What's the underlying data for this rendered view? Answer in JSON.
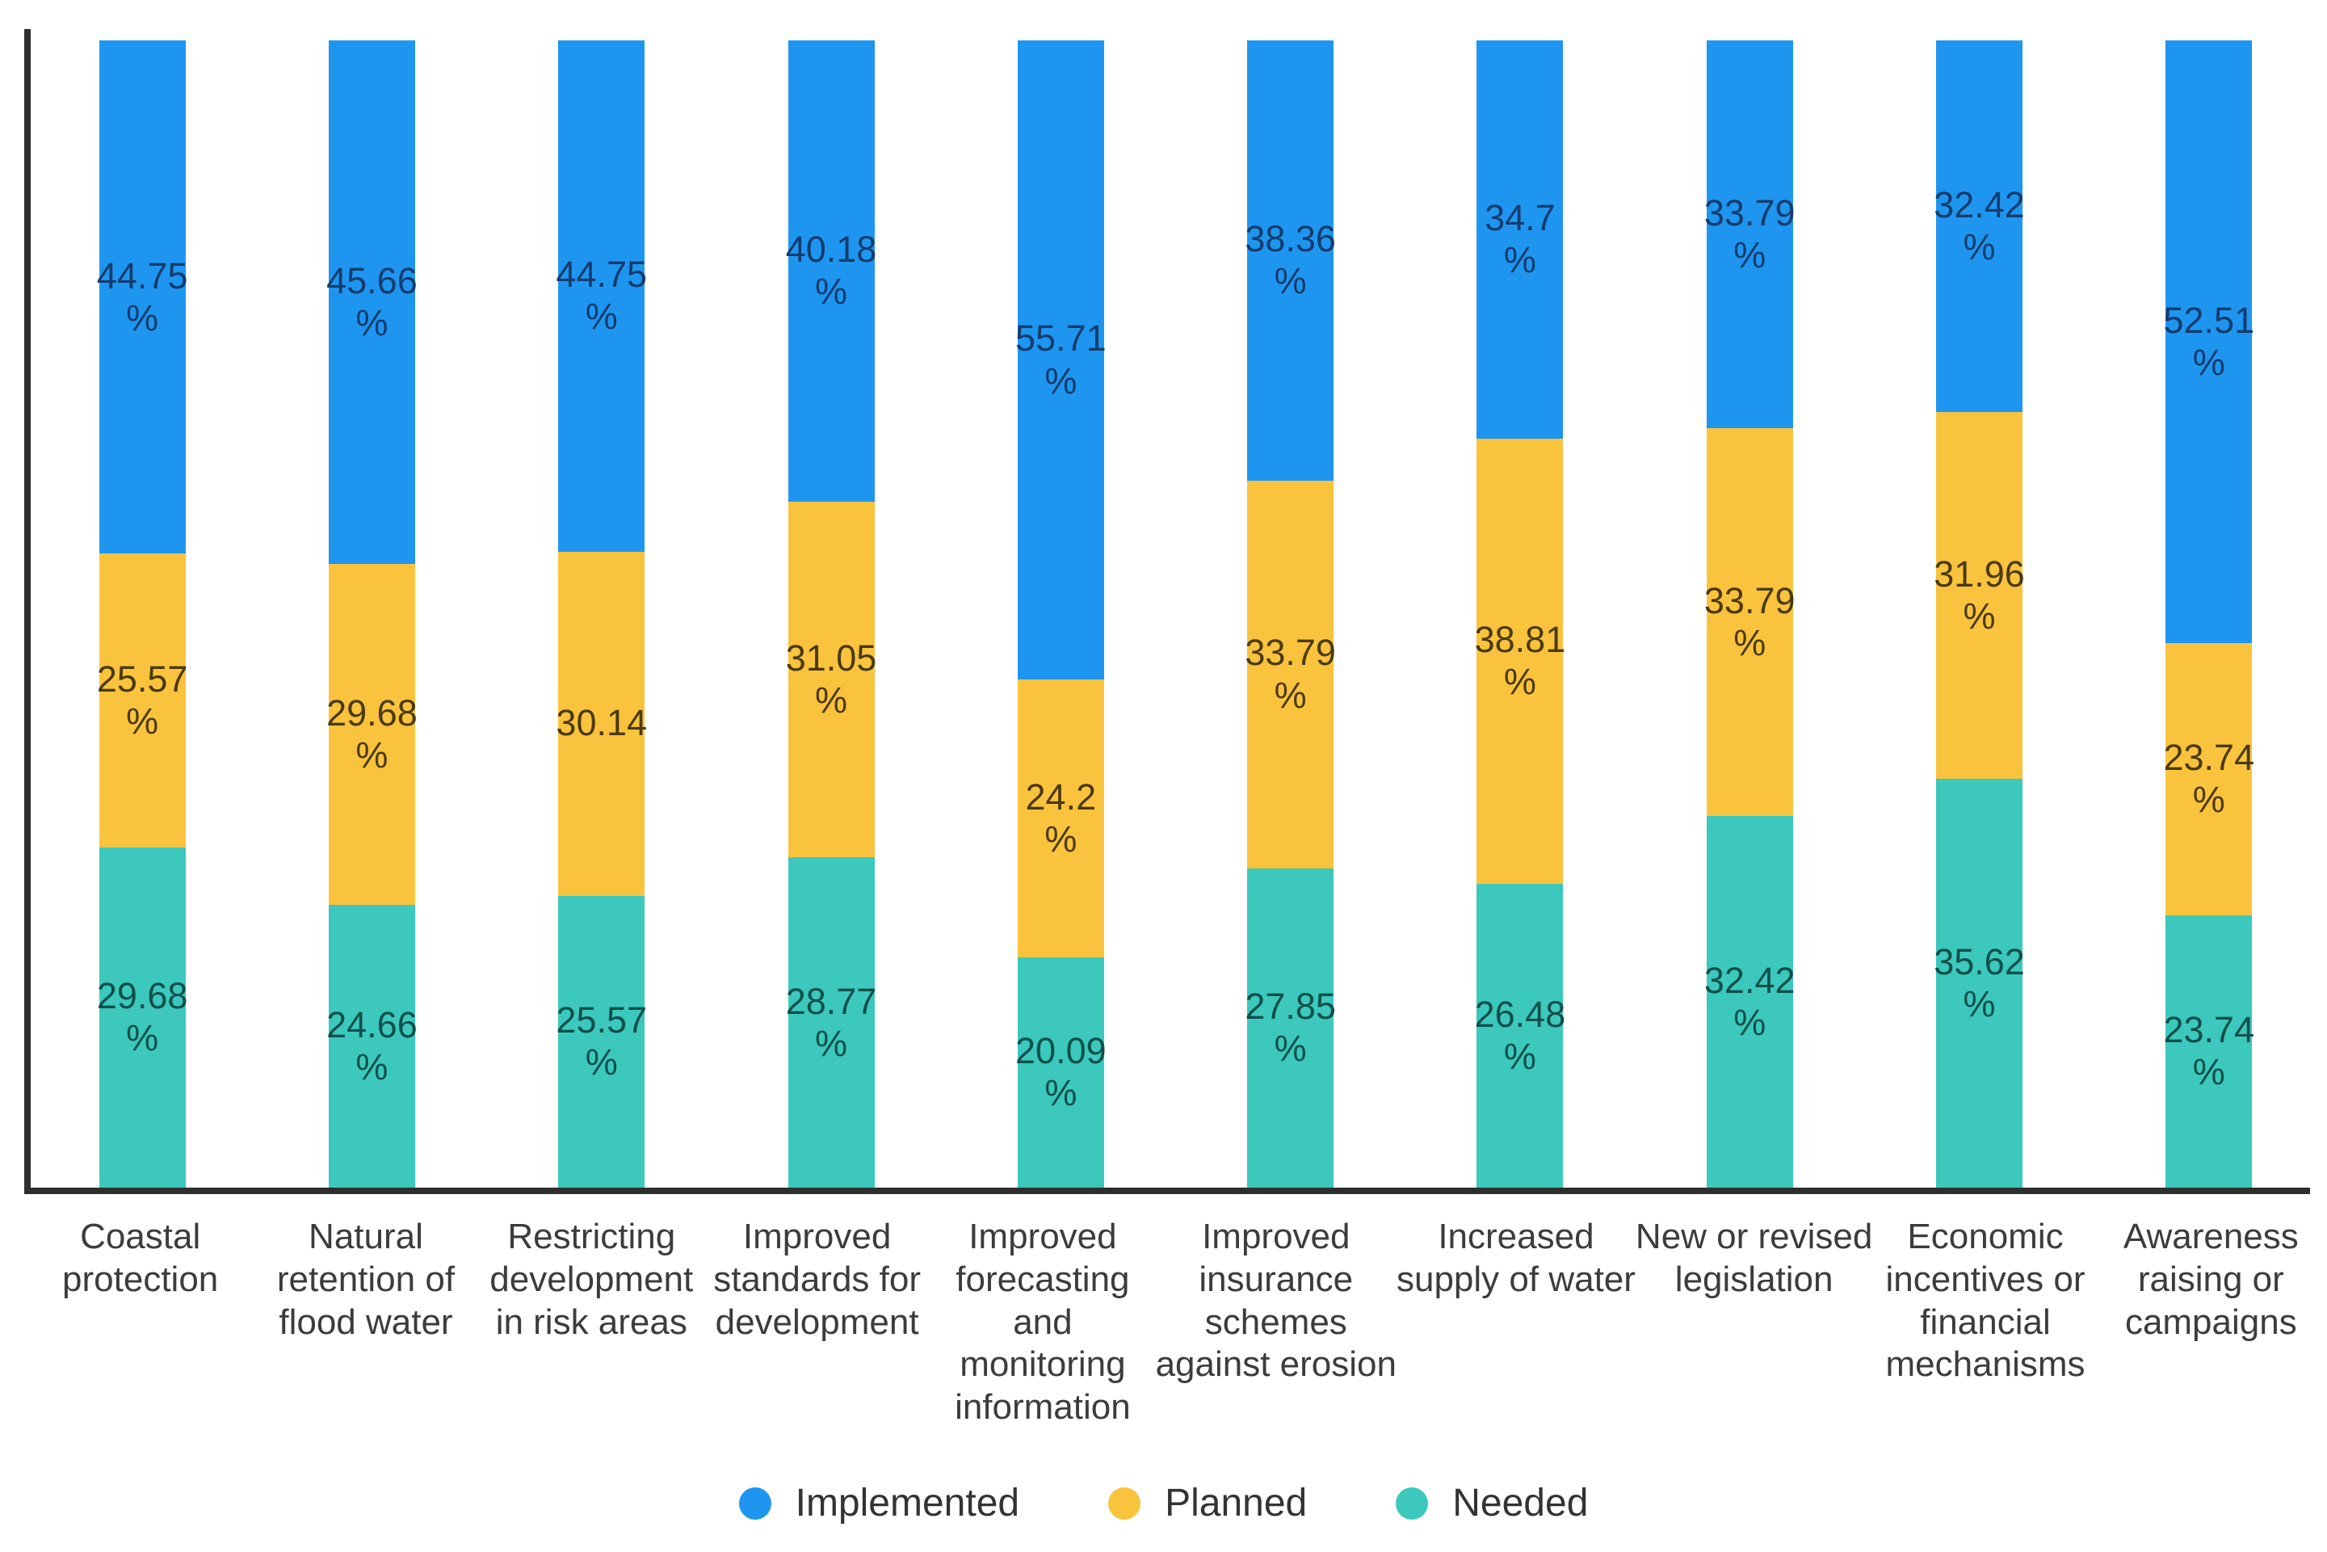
{
  "chart_data": {
    "type": "bar",
    "subtype": "stacked-percent-column",
    "title": "",
    "xlabel": "",
    "ylabel": "",
    "unit": "%",
    "ylim": [
      0,
      100
    ],
    "grid": false,
    "legend_position": "bottom",
    "colors": {
      "implemented": "#1E96F0",
      "planned": "#FAC33E",
      "needed": "#3CC8BC",
      "axis": "#2E2E2E",
      "category_text": "#3C3C3C",
      "legend_text": "#333333"
    },
    "categories": [
      {
        "id": "coastal-protection",
        "lines": [
          "Coastal",
          "protection"
        ]
      },
      {
        "id": "natural-retention-of-flood-water",
        "lines": [
          "Natural",
          "retention of",
          "flood water"
        ]
      },
      {
        "id": "restricting-development-in-risk-areas",
        "lines": [
          "Restricting",
          "development",
          "in risk areas"
        ]
      },
      {
        "id": "improved-standards-for-development",
        "lines": [
          "Improved",
          "standards for",
          "development"
        ]
      },
      {
        "id": "improved-forecasting-and-monitoring-information",
        "lines": [
          "Improved",
          "forecasting",
          "and",
          "monitoring",
          "information"
        ]
      },
      {
        "id": "improved-insurance-schemes-against-erosion",
        "lines": [
          "Improved",
          "insurance",
          "schemes",
          "against erosion"
        ]
      },
      {
        "id": "increased-supply-of-water",
        "lines": [
          "Increased",
          "supply of water"
        ]
      },
      {
        "id": "new-or-revised-legislation",
        "lines": [
          "New or revised",
          "legislation"
        ]
      },
      {
        "id": "economic-incentives-or-financial-mechanisms",
        "lines": [
          "Economic",
          "incentives or",
          "financial",
          "mechanisms"
        ]
      },
      {
        "id": "awareness-raising-or-campaigns",
        "lines": [
          "Awareness",
          "raising or",
          "campaigns"
        ]
      }
    ],
    "series": [
      {
        "name": "Implemented",
        "color": "#1E96F0",
        "label_color": "#143C6E",
        "values": [
          44.75,
          45.66,
          44.75,
          40.18,
          55.71,
          38.36,
          34.7,
          33.79,
          32.42,
          52.51
        ],
        "display": [
          [
            "44.75",
            "%"
          ],
          [
            "45.66",
            "%"
          ],
          [
            "44.75",
            "%"
          ],
          [
            "40.18",
            "%"
          ],
          [
            "55.71",
            "%"
          ],
          [
            "38.36",
            "%"
          ],
          [
            "34.7",
            "%"
          ],
          [
            "33.79",
            "%"
          ],
          [
            "32.42",
            "%"
          ],
          [
            "52.51",
            "%"
          ]
        ]
      },
      {
        "name": "Planned",
        "color": "#FAC33E",
        "label_color": "#4B3A10",
        "values": [
          25.57,
          29.68,
          30.14,
          31.05,
          24.2,
          33.79,
          38.81,
          33.79,
          31.96,
          23.74
        ],
        "display": [
          [
            "25.57",
            "%"
          ],
          [
            "29.68",
            "%"
          ],
          [
            "30.14"
          ],
          [
            "31.05",
            "%"
          ],
          [
            "24.2",
            "%"
          ],
          [
            "33.79",
            "%"
          ],
          [
            "38.81",
            "%"
          ],
          [
            "33.79",
            "%"
          ],
          [
            "31.96",
            "%"
          ],
          [
            "23.74",
            "%"
          ]
        ]
      },
      {
        "name": "Needed",
        "color": "#3CC8BC",
        "label_color": "#0F504B",
        "values": [
          29.68,
          24.66,
          25.57,
          28.77,
          20.09,
          27.85,
          26.48,
          32.42,
          35.62,
          23.74
        ],
        "display": [
          [
            "29.68",
            "%"
          ],
          [
            "24.66",
            "%"
          ],
          [
            "25.57",
            "%"
          ],
          [
            "28.77",
            "%"
          ],
          [
            "20.09",
            "%"
          ],
          [
            "27.85",
            "%"
          ],
          [
            "26.48",
            "%"
          ],
          [
            "32.42",
            "%"
          ],
          [
            "35.62",
            "%"
          ],
          [
            "23.74",
            "%"
          ]
        ]
      }
    ],
    "legend": [
      {
        "label": "Implemented",
        "color": "#1E96F0"
      },
      {
        "label": "Planned",
        "color": "#FAC33E"
      },
      {
        "label": "Needed",
        "color": "#3CC8BC"
      }
    ]
  }
}
